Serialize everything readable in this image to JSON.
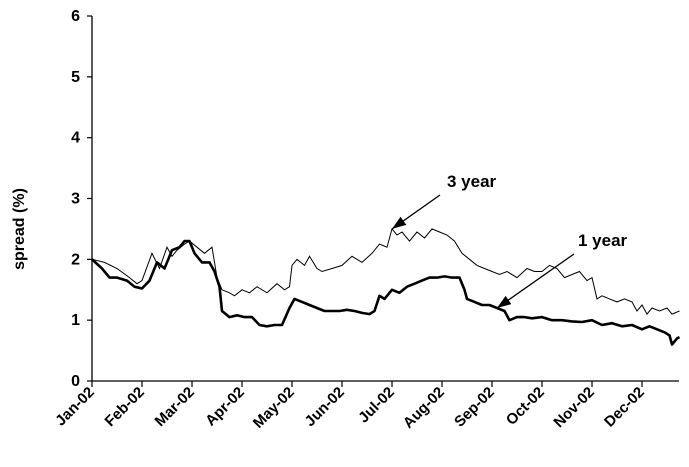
{
  "chart_data": {
    "type": "line",
    "title": "",
    "xlabel": "",
    "ylabel": "spread (%)",
    "ylim": [
      0,
      6
    ],
    "yticks": [
      "0",
      "1",
      "2",
      "3",
      "4",
      "5",
      "6"
    ],
    "xticks": [
      "Jan-02",
      "Feb-02",
      "Mar-02",
      "Apr-02",
      "May-02",
      "Jun-02",
      "Jul-02",
      "Aug-02",
      "Sep-02",
      "Oct-02",
      "Nov-02",
      "Dec-02"
    ],
    "grid": false,
    "legend": "none",
    "annotations": [
      {
        "text": "3 year",
        "series": "3 year",
        "x": 6.0
      },
      {
        "text": "1 year",
        "series": "1 year",
        "x": 8.1
      }
    ],
    "series": [
      {
        "name": "3 year",
        "style": "thin",
        "x": [
          0,
          0.25,
          0.5,
          0.75,
          0.9,
          1.0,
          1.2,
          1.35,
          1.5,
          1.6,
          1.7,
          1.85,
          1.95,
          2.1,
          2.25,
          2.4,
          2.5,
          2.6,
          2.75,
          2.85,
          3.0,
          3.15,
          3.3,
          3.5,
          3.7,
          3.85,
          3.95,
          4.0,
          4.1,
          4.25,
          4.35,
          4.5,
          4.6,
          4.8,
          5.0,
          5.2,
          5.4,
          5.6,
          5.75,
          5.9,
          6.0,
          6.1,
          6.2,
          6.35,
          6.5,
          6.65,
          6.8,
          6.95,
          7.1,
          7.25,
          7.4,
          7.55,
          7.7,
          7.85,
          8.0,
          8.15,
          8.3,
          8.5,
          8.7,
          8.85,
          9.0,
          9.15,
          9.3,
          9.45,
          9.6,
          9.75,
          9.9,
          10.0,
          10.1,
          10.2,
          10.35,
          10.5,
          10.65,
          10.8,
          10.9,
          11.0,
          11.1,
          11.2,
          11.35,
          11.5,
          11.6,
          11.75
        ],
        "y": [
          2.0,
          1.95,
          1.85,
          1.7,
          1.6,
          1.65,
          2.1,
          1.85,
          2.2,
          2.05,
          2.15,
          2.25,
          2.3,
          2.2,
          2.1,
          2.2,
          1.7,
          1.5,
          1.45,
          1.4,
          1.5,
          1.45,
          1.55,
          1.45,
          1.6,
          1.5,
          1.55,
          1.9,
          2.0,
          1.9,
          2.05,
          1.85,
          1.8,
          1.85,
          1.9,
          2.05,
          1.95,
          2.1,
          2.25,
          2.2,
          2.5,
          2.4,
          2.45,
          2.3,
          2.45,
          2.35,
          2.5,
          2.45,
          2.4,
          2.3,
          2.1,
          2.0,
          1.9,
          1.85,
          1.8,
          1.75,
          1.8,
          1.7,
          1.85,
          1.8,
          1.8,
          1.9,
          1.85,
          1.7,
          1.75,
          1.8,
          1.65,
          1.7,
          1.35,
          1.4,
          1.35,
          1.3,
          1.35,
          1.3,
          1.15,
          1.25,
          1.1,
          1.2,
          1.15,
          1.2,
          1.1,
          1.15
        ]
      },
      {
        "name": "1 year",
        "style": "thick",
        "x": [
          0,
          0.2,
          0.35,
          0.5,
          0.7,
          0.85,
          1.0,
          1.15,
          1.3,
          1.45,
          1.6,
          1.75,
          1.85,
          1.95,
          2.05,
          2.2,
          2.35,
          2.45,
          2.55,
          2.6,
          2.75,
          2.9,
          3.05,
          3.2,
          3.35,
          3.5,
          3.65,
          3.8,
          3.95,
          4.05,
          4.2,
          4.35,
          4.5,
          4.65,
          4.8,
          4.95,
          5.1,
          5.25,
          5.4,
          5.55,
          5.65,
          5.75,
          5.85,
          6.0,
          6.15,
          6.3,
          6.45,
          6.6,
          6.75,
          6.9,
          7.05,
          7.2,
          7.35,
          7.45,
          7.5,
          7.65,
          7.8,
          7.95,
          8.1,
          8.25,
          8.35,
          8.5,
          8.65,
          8.8,
          9.0,
          9.2,
          9.4,
          9.6,
          9.8,
          10.0,
          10.2,
          10.4,
          10.6,
          10.8,
          11.0,
          11.15,
          11.3,
          11.45,
          11.55,
          11.6,
          11.7,
          11.75
        ],
        "y": [
          2.0,
          1.85,
          1.7,
          1.7,
          1.65,
          1.55,
          1.52,
          1.65,
          1.95,
          1.85,
          2.15,
          2.2,
          2.3,
          2.3,
          2.1,
          1.95,
          1.95,
          1.8,
          1.55,
          1.15,
          1.05,
          1.08,
          1.05,
          1.05,
          0.92,
          0.9,
          0.92,
          0.92,
          1.2,
          1.35,
          1.3,
          1.25,
          1.2,
          1.15,
          1.15,
          1.15,
          1.17,
          1.15,
          1.12,
          1.1,
          1.15,
          1.4,
          1.35,
          1.5,
          1.45,
          1.55,
          1.6,
          1.65,
          1.7,
          1.7,
          1.72,
          1.7,
          1.7,
          1.5,
          1.35,
          1.3,
          1.25,
          1.25,
          1.2,
          1.15,
          1.0,
          1.05,
          1.05,
          1.03,
          1.05,
          1.0,
          1.0,
          0.98,
          0.97,
          1.0,
          0.92,
          0.95,
          0.9,
          0.92,
          0.85,
          0.9,
          0.85,
          0.8,
          0.75,
          0.6,
          0.7,
          0.72
        ]
      }
    ]
  }
}
